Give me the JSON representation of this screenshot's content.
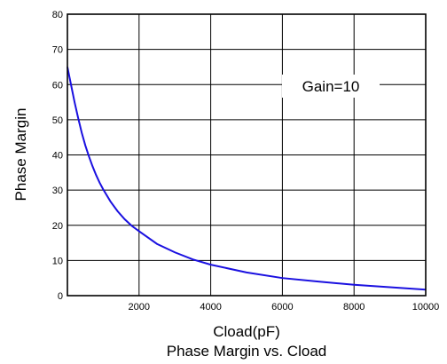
{
  "chart_data": {
    "type": "line",
    "title": "Phase Margin vs. Cload",
    "xlabel": "Cload(pF)",
    "ylabel": "Phase Margin",
    "xlim": [
      0,
      10000
    ],
    "ylim": [
      0,
      80
    ],
    "xticks": [
      2000,
      4000,
      6000,
      8000,
      10000
    ],
    "yticks": [
      0,
      10,
      20,
      30,
      40,
      50,
      60,
      70,
      80
    ],
    "grid": true,
    "annotation": "Gain=10",
    "line_color": "#1a10e0",
    "series": [
      {
        "x": [
          0,
          100,
          200,
          300,
          400,
          500,
          600,
          700,
          800,
          900,
          1000,
          1200,
          1400,
          1600,
          1800,
          2000,
          2500,
          3000,
          3500,
          4000,
          5000,
          6000,
          7000,
          8000,
          9000,
          10000
        ],
        "values": [
          65,
          60,
          55,
          50.5,
          46.3,
          42.7,
          39.6,
          36.8,
          34.3,
          32.1,
          30.2,
          26.8,
          24,
          21.7,
          19.8,
          18.3,
          14.7,
          12.3,
          10.3,
          8.8,
          6.6,
          5,
          4,
          3.1,
          2.4,
          1.7
        ]
      }
    ]
  }
}
